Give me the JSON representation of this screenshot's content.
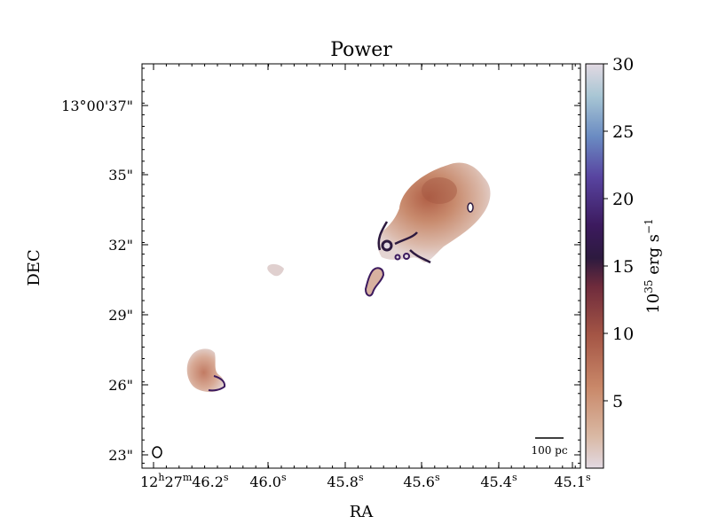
{
  "chart_data": {
    "type": "heatmap",
    "title": "Power",
    "xlabel": "RA",
    "ylabel": "DEC",
    "x_ticks": [
      {
        "label": "12h27m46.2s",
        "parts": [
          "12",
          "h",
          "27",
          "m",
          "46.2",
          "s"
        ]
      },
      {
        "label": "46.0s",
        "parts": [
          "46.0",
          "s"
        ]
      },
      {
        "label": "45.8s",
        "parts": [
          "45.8",
          "s"
        ]
      },
      {
        "label": "45.6s",
        "parts": [
          "45.6",
          "s"
        ]
      },
      {
        "label": "45.4s",
        "parts": [
          "45.4",
          "s"
        ]
      },
      {
        "label": "45.1s",
        "parts": [
          "45.1",
          "s"
        ]
      }
    ],
    "y_ticks": [
      "13°00'37\"",
      "35\"",
      "32\"",
      "29\"",
      "26\"",
      "23\""
    ],
    "colorbar": {
      "label": "10^35 erg s^-1",
      "label_parts": [
        "10",
        "35",
        " erg s",
        "−1"
      ],
      "range": [
        0,
        30
      ],
      "ticks": [
        5,
        10,
        15,
        20,
        25,
        30
      ],
      "colormap": "twilight"
    },
    "scale_bar": "100 pc",
    "beam": "ellipse",
    "sources": [
      {
        "name": "main emission region",
        "power_peak": 8,
        "edge_power": 16
      },
      {
        "name": "small knot",
        "power_peak": 2
      },
      {
        "name": "southeast blob",
        "power_peak": 7,
        "edge_power": 14
      }
    ]
  },
  "colors": {
    "low": "#e2d9e2",
    "mid": "#c27b63",
    "dark": "#2d1a3f",
    "high": "#a8c6d4"
  }
}
